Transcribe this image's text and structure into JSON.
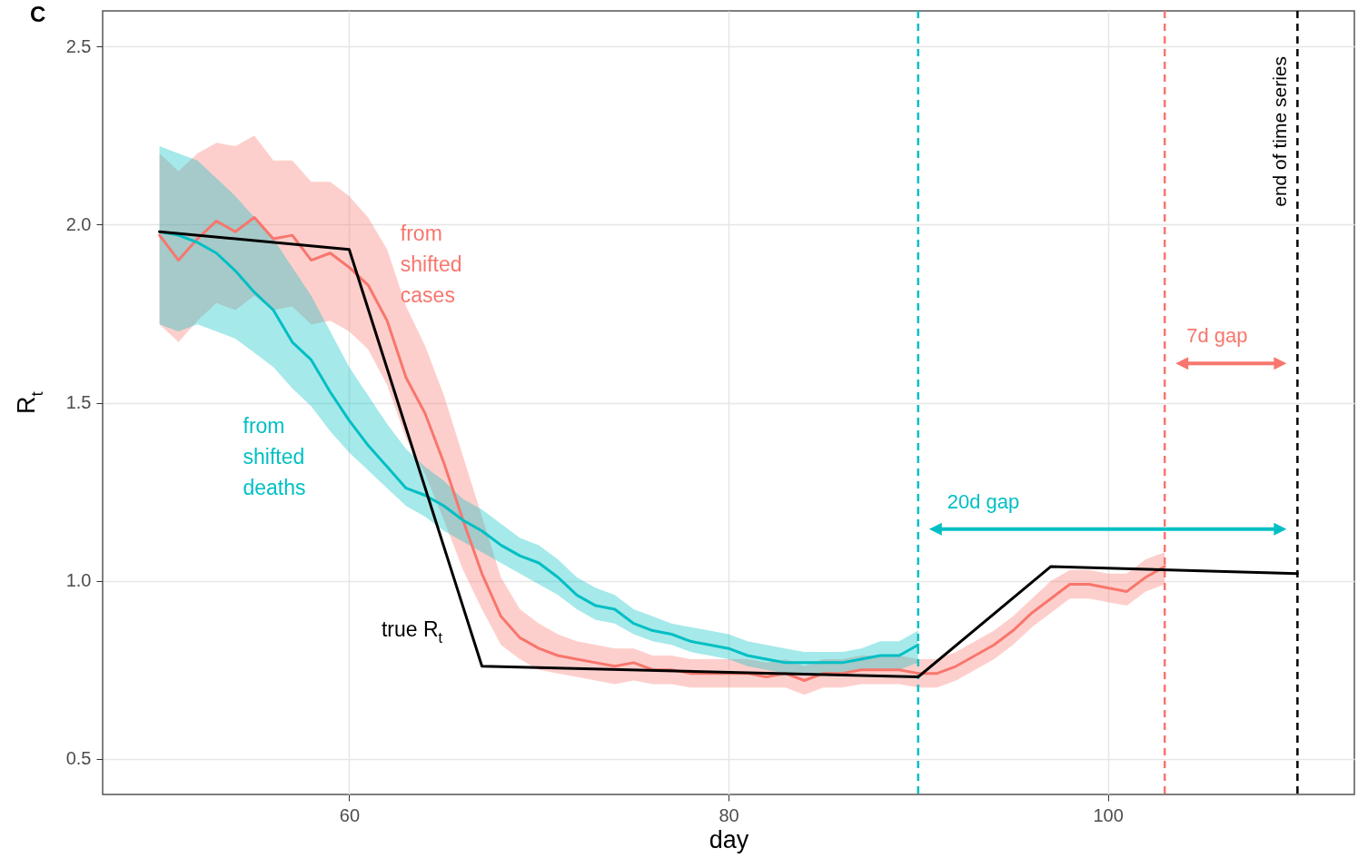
{
  "chart_data": {
    "type": "line",
    "title": "C",
    "xlabel": "day",
    "ylabel": "R$_{t}$",
    "xlim": [
      47,
      113
    ],
    "ylim": [
      0.4,
      2.6
    ],
    "xticks": [
      60,
      80,
      100
    ],
    "yticks": [
      0.5,
      {
        "value": 1,
        "label": "1.0"
      },
      1.5,
      {
        "value": 2,
        "label": "2.0"
      },
      2.5
    ],
    "grid": true,
    "legend": false,
    "series": [
      {
        "name": "from shifted cases",
        "color": "#f8766d",
        "x": [
          50,
          51,
          52,
          53,
          54,
          55,
          56,
          57,
          58,
          59,
          60,
          61,
          62,
          63,
          64,
          65,
          66,
          67,
          68,
          69,
          70,
          71,
          72,
          73,
          74,
          75,
          76,
          77,
          78,
          79,
          80,
          81,
          82,
          83,
          84,
          85,
          86,
          87,
          88,
          89,
          90,
          91,
          92,
          93,
          94,
          95,
          96,
          97,
          98,
          99,
          100,
          101,
          102,
          103
        ],
        "values": [
          1.97,
          1.9,
          1.96,
          2.01,
          1.98,
          2.02,
          1.96,
          1.97,
          1.9,
          1.92,
          1.88,
          1.83,
          1.73,
          1.57,
          1.47,
          1.33,
          1.17,
          1.02,
          0.9,
          0.84,
          0.81,
          0.79,
          0.78,
          0.77,
          0.76,
          0.77,
          0.75,
          0.75,
          0.74,
          0.74,
          0.74,
          0.74,
          0.73,
          0.74,
          0.72,
          0.74,
          0.74,
          0.75,
          0.75,
          0.75,
          0.74,
          0.74,
          0.76,
          0.79,
          0.82,
          0.86,
          0.91,
          0.95,
          0.99,
          0.99,
          0.98,
          0.97,
          1.01,
          1.04
        ],
        "lower": [
          1.72,
          1.67,
          1.73,
          1.78,
          1.76,
          1.8,
          1.76,
          1.77,
          1.72,
          1.73,
          1.7,
          1.65,
          1.55,
          1.4,
          1.3,
          1.17,
          1.03,
          0.92,
          0.82,
          0.78,
          0.75,
          0.74,
          0.73,
          0.72,
          0.71,
          0.72,
          0.71,
          0.71,
          0.7,
          0.7,
          0.7,
          0.7,
          0.7,
          0.7,
          0.68,
          0.7,
          0.7,
          0.71,
          0.71,
          0.71,
          0.7,
          0.7,
          0.72,
          0.75,
          0.78,
          0.82,
          0.87,
          0.91,
          0.95,
          0.95,
          0.94,
          0.93,
          0.97,
          0.99
        ],
        "upper": [
          2.2,
          2.15,
          2.2,
          2.23,
          2.22,
          2.25,
          2.18,
          2.18,
          2.12,
          2.12,
          2.08,
          2.02,
          1.93,
          1.77,
          1.66,
          1.52,
          1.35,
          1.18,
          1.01,
          0.92,
          0.88,
          0.85,
          0.83,
          0.82,
          0.81,
          0.81,
          0.79,
          0.79,
          0.78,
          0.78,
          0.78,
          0.78,
          0.77,
          0.78,
          0.76,
          0.78,
          0.78,
          0.79,
          0.79,
          0.79,
          0.78,
          0.78,
          0.8,
          0.83,
          0.86,
          0.9,
          0.95,
          1.0,
          1.03,
          1.03,
          1.02,
          1.02,
          1.06,
          1.08
        ]
      },
      {
        "name": "from shifted deaths",
        "color": "#00bfc4",
        "x": [
          50,
          51,
          52,
          53,
          54,
          55,
          56,
          57,
          58,
          59,
          60,
          61,
          62,
          63,
          64,
          65,
          66,
          67,
          68,
          69,
          70,
          71,
          72,
          73,
          74,
          75,
          76,
          77,
          78,
          79,
          80,
          81,
          82,
          83,
          84,
          85,
          86,
          87,
          88,
          89,
          90
        ],
        "values": [
          1.98,
          1.97,
          1.95,
          1.92,
          1.87,
          1.81,
          1.76,
          1.67,
          1.62,
          1.53,
          1.45,
          1.38,
          1.32,
          1.26,
          1.24,
          1.21,
          1.17,
          1.14,
          1.1,
          1.07,
          1.05,
          1.01,
          0.96,
          0.93,
          0.92,
          0.88,
          0.86,
          0.85,
          0.83,
          0.82,
          0.81,
          0.79,
          0.78,
          0.77,
          0.77,
          0.77,
          0.77,
          0.78,
          0.79,
          0.79,
          0.82
        ],
        "lower": [
          1.72,
          1.7,
          1.72,
          1.7,
          1.68,
          1.64,
          1.6,
          1.54,
          1.49,
          1.42,
          1.36,
          1.31,
          1.26,
          1.21,
          1.18,
          1.14,
          1.11,
          1.08,
          1.05,
          1.02,
          0.99,
          0.96,
          0.92,
          0.89,
          0.88,
          0.85,
          0.83,
          0.82,
          0.8,
          0.79,
          0.78,
          0.76,
          0.75,
          0.74,
          0.74,
          0.74,
          0.74,
          0.75,
          0.75,
          0.75,
          0.77
        ],
        "upper": [
          2.22,
          2.2,
          2.18,
          2.13,
          2.08,
          2.02,
          1.96,
          1.88,
          1.8,
          1.7,
          1.6,
          1.52,
          1.44,
          1.37,
          1.32,
          1.28,
          1.23,
          1.2,
          1.16,
          1.12,
          1.1,
          1.06,
          1.01,
          0.98,
          0.96,
          0.92,
          0.9,
          0.88,
          0.87,
          0.86,
          0.85,
          0.83,
          0.82,
          0.81,
          0.8,
          0.8,
          0.8,
          0.81,
          0.83,
          0.83,
          0.86
        ]
      },
      {
        "name": "true R$_{t}$",
        "color": "#000000",
        "x": [
          50,
          60,
          67,
          90,
          97,
          110
        ],
        "values": [
          1.98,
          1.93,
          0.76,
          0.73,
          1.04,
          1.02
        ]
      }
    ],
    "ref_lines": [
      {
        "axis": "x",
        "value": 90,
        "color": "#00bfc4",
        "line_style": "dashed"
      },
      {
        "axis": "x",
        "value": 103,
        "color": "#f8766d",
        "line_style": "dashed"
      },
      {
        "axis": "x",
        "value": 110,
        "color": "#000000",
        "line_style": "dashed",
        "label": "end of time series"
      }
    ],
    "annotations": [
      "20d gap",
      "7d gap"
    ]
  }
}
